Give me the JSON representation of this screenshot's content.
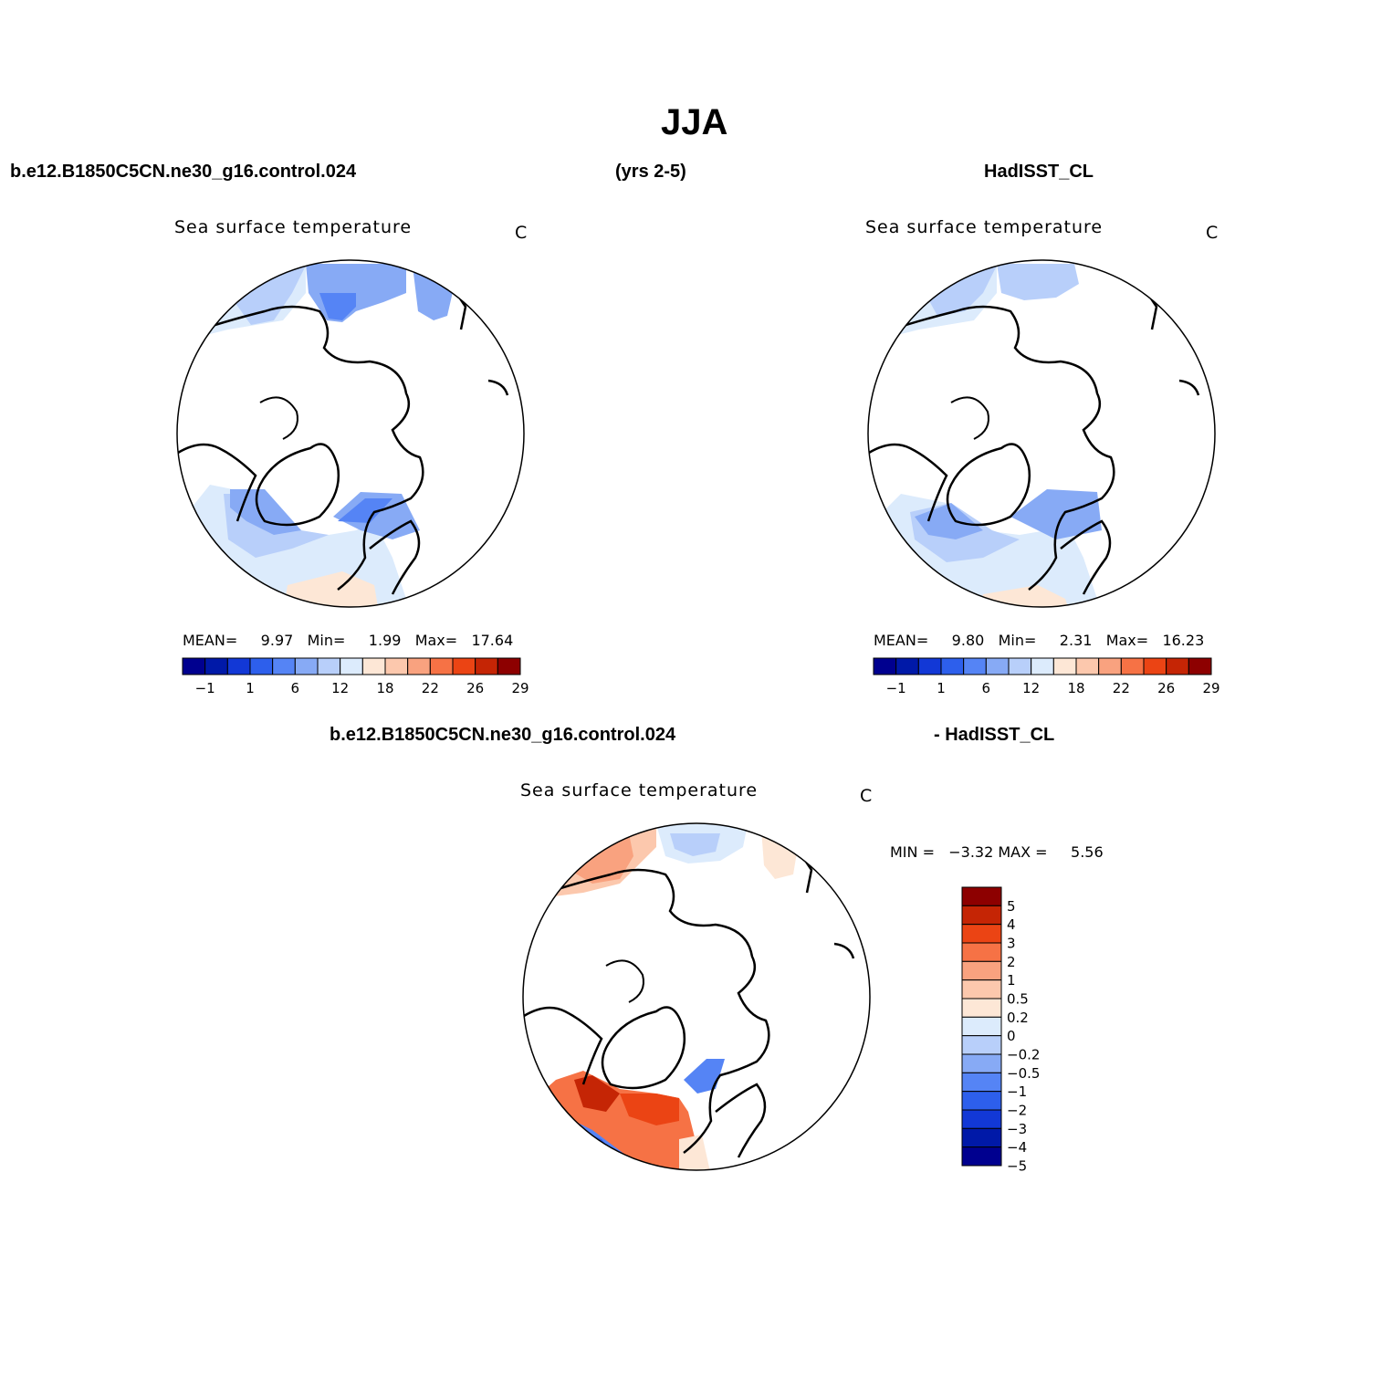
{
  "title": "JJA",
  "header": {
    "model": "b.e12.B1850C5CN.ne30_g16.control.024",
    "years": "(yrs 2-5)",
    "obs": "HadISST_CL",
    "diff_model": "b.e12.B1850C5CN.ne30_g16.control.024",
    "diff_obs": "- HadISST_CL"
  },
  "panels": {
    "model": {
      "variable": "Sea surface temperature",
      "units": "C",
      "stats": {
        "mean_label": "MEAN=",
        "mean": "9.97",
        "min_label": "Min=",
        "min": "1.99",
        "max_label": "Max=",
        "max": "17.64"
      }
    },
    "obs": {
      "variable": "Sea surface temperature",
      "units": "C",
      "stats": {
        "mean_label": "MEAN=",
        "mean": "9.80",
        "min_label": "Min=",
        "min": "2.31",
        "max_label": "Max=",
        "max": "16.23"
      }
    },
    "diff": {
      "variable": "Sea surface temperature",
      "units": "C",
      "stats": {
        "min_label": "MIN =",
        "min": "−3.32",
        "max_label": "MAX =",
        "max": "5.56"
      }
    }
  },
  "colorbars": {
    "abs": {
      "colors": [
        "#00008f",
        "#0019a8",
        "#1238d6",
        "#2d5fec",
        "#5584f5",
        "#87aaf5",
        "#b8cffa",
        "#dcebfc",
        "#fde7d6",
        "#fcc8ad",
        "#f9a27f",
        "#f67245",
        "#eb4414",
        "#c52505",
        "#8d0000"
      ],
      "tick_labels": [
        "−1",
        "1",
        "6",
        "12",
        "18",
        "22",
        "26",
        "29"
      ]
    },
    "diff": {
      "colors": [
        "#00008f",
        "#0019a8",
        "#1238d6",
        "#2d5fec",
        "#5584f5",
        "#87aaf5",
        "#b8cffa",
        "#dcebfc",
        "#fde7d6",
        "#fcc8ad",
        "#f9a27f",
        "#f67245",
        "#eb4414",
        "#c52505",
        "#8d0000"
      ],
      "tick_labels": [
        "5",
        "4",
        "3",
        "2",
        "1",
        "0.5",
        "0.2",
        "0",
        "−0.2",
        "−0.5",
        "−1",
        "−2",
        "−3",
        "−4",
        "−5"
      ]
    }
  }
}
